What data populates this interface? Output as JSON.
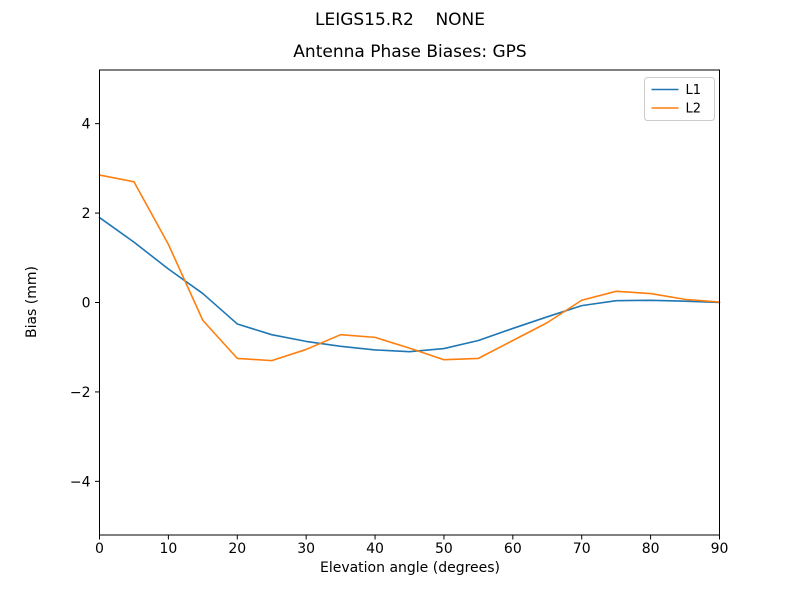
{
  "header": {
    "suptitle": "LEIGS15.R2    NONE",
    "title": "Antenna Phase Biases: GPS"
  },
  "chart_data": {
    "type": "line",
    "suptitle": "LEIGS15.R2    NONE",
    "title": "Antenna Phase Biases: GPS",
    "xlabel": "Elevation angle (degrees)",
    "ylabel": "Bias (mm)",
    "xlim": [
      0,
      90
    ],
    "ylim": [
      -5.2,
      5.2
    ],
    "x_ticks": [
      0,
      10,
      20,
      30,
      40,
      50,
      60,
      70,
      80,
      90
    ],
    "y_ticks": [
      -4,
      -2,
      0,
      2,
      4
    ],
    "y_tick_labels": [
      "−4",
      "−2",
      "0",
      "2",
      "4"
    ],
    "grid": false,
    "legend_position": "upper right",
    "x": [
      0,
      5,
      10,
      15,
      20,
      25,
      30,
      35,
      40,
      45,
      50,
      55,
      60,
      65,
      70,
      75,
      80,
      85,
      90
    ],
    "series": [
      {
        "name": "L1",
        "color": "#1f77b4",
        "values": [
          1.9,
          1.35,
          0.75,
          0.2,
          -0.48,
          -0.72,
          -0.87,
          -0.98,
          -1.06,
          -1.1,
          -1.03,
          -0.85,
          -0.58,
          -0.32,
          -0.07,
          0.04,
          0.05,
          0.03,
          0.0
        ]
      },
      {
        "name": "L2",
        "color": "#ff7f0e",
        "values": [
          2.85,
          2.7,
          1.3,
          -0.4,
          -1.25,
          -1.3,
          -1.05,
          -0.72,
          -0.78,
          -1.02,
          -1.28,
          -1.25,
          -0.85,
          -0.45,
          0.05,
          0.25,
          0.2,
          0.07,
          0.01
        ]
      }
    ],
    "axes_color": "#000000",
    "legend_border_color": "#cccccc"
  }
}
